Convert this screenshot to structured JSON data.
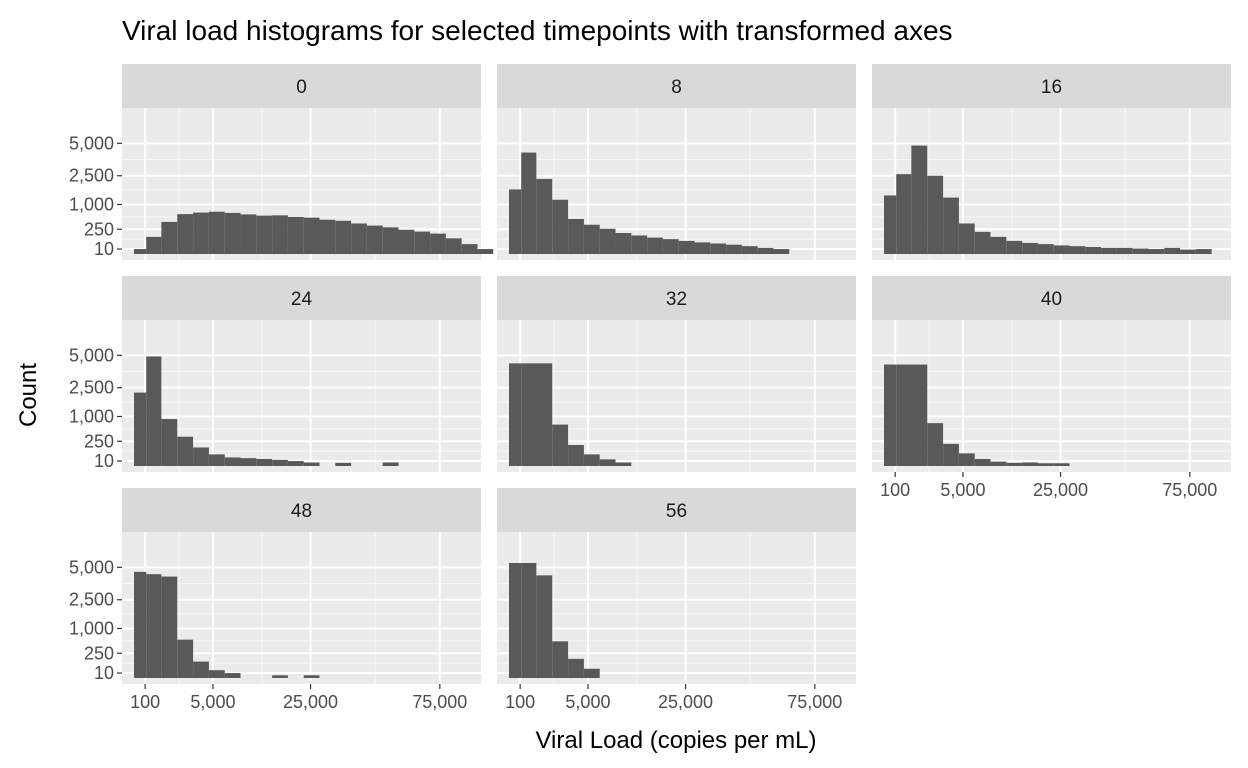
{
  "chart_data": {
    "type": "bar",
    "subtype": "faceted-histogram",
    "title": "Viral load histograms for selected timepoints with transformed axes",
    "xlabel": "Viral Load (copies per mL)",
    "ylabel": "Count",
    "x_transform": "sqrt",
    "y_transform": "sqrt",
    "xlim": [
      0,
      90000
    ],
    "ylim": [
      0,
      8000
    ],
    "x_ticks": [
      100,
      5000,
      25000,
      75000
    ],
    "x_tick_labels": [
      "100",
      "5,000",
      "25,000",
      "75,000"
    ],
    "y_ticks": [
      10,
      250,
      1000,
      2500,
      5000
    ],
    "y_tick_labels": [
      "10",
      "250",
      "1,000",
      "2,500",
      "5,000"
    ],
    "grid": true,
    "panel_background": "#ebebeb",
    "strip_background": "#d9d9d9",
    "bar_color": "#595959",
    "facets": [
      {
        "label": "0",
        "bins": [
          {
            "x0": 0,
            "x1": 120,
            "count": 10
          },
          {
            "x0": 120,
            "x1": 600,
            "count": 120
          },
          {
            "x0": 600,
            "x1": 1500,
            "count": 420
          },
          {
            "x0": 1500,
            "x1": 2800,
            "count": 650
          },
          {
            "x0": 2800,
            "x1": 4500,
            "count": 700
          },
          {
            "x0": 4500,
            "x1": 6600,
            "count": 730
          },
          {
            "x0": 6600,
            "x1": 9100,
            "count": 690
          },
          {
            "x0": 9100,
            "x1": 12000,
            "count": 640
          },
          {
            "x0": 12000,
            "x1": 15300,
            "count": 600
          },
          {
            "x0": 15300,
            "x1": 19000,
            "count": 610
          },
          {
            "x0": 19000,
            "x1": 23100,
            "count": 560
          },
          {
            "x0": 23100,
            "x1": 27600,
            "count": 540
          },
          {
            "x0": 27600,
            "x1": 32500,
            "count": 480
          },
          {
            "x0": 32500,
            "x1": 37800,
            "count": 450
          },
          {
            "x0": 37800,
            "x1": 43500,
            "count": 380
          },
          {
            "x0": 43500,
            "x1": 49600,
            "count": 330
          },
          {
            "x0": 49600,
            "x1": 56100,
            "count": 290
          },
          {
            "x0": 56100,
            "x1": 63000,
            "count": 240
          },
          {
            "x0": 63000,
            "x1": 70300,
            "count": 205
          },
          {
            "x0": 70300,
            "x1": 78000,
            "count": 170
          },
          {
            "x0": 78000,
            "x1": 86100,
            "count": 100
          },
          {
            "x0": 86100,
            "x1": 94600,
            "count": 40
          },
          {
            "x0": 94600,
            "x1": 103500,
            "count": 10
          }
        ]
      },
      {
        "label": "8",
        "bins": [
          {
            "x0": 0,
            "x1": 120,
            "count": 1700
          },
          {
            "x0": 120,
            "x1": 600,
            "count": 4200
          },
          {
            "x0": 600,
            "x1": 1500,
            "count": 2300
          },
          {
            "x0": 1500,
            "x1": 2800,
            "count": 1200
          },
          {
            "x0": 2800,
            "x1": 4500,
            "count": 500
          },
          {
            "x0": 4500,
            "x1": 6600,
            "count": 350
          },
          {
            "x0": 6600,
            "x1": 9100,
            "count": 260
          },
          {
            "x0": 9100,
            "x1": 12000,
            "count": 180
          },
          {
            "x0": 12000,
            "x1": 15300,
            "count": 140
          },
          {
            "x0": 15300,
            "x1": 19000,
            "count": 110
          },
          {
            "x0": 19000,
            "x1": 23100,
            "count": 90
          },
          {
            "x0": 23100,
            "x1": 27600,
            "count": 70
          },
          {
            "x0": 27600,
            "x1": 32500,
            "count": 55
          },
          {
            "x0": 32500,
            "x1": 37800,
            "count": 45
          },
          {
            "x0": 37800,
            "x1": 43500,
            "count": 35
          },
          {
            "x0": 43500,
            "x1": 49600,
            "count": 25
          },
          {
            "x0": 49600,
            "x1": 56100,
            "count": 15
          },
          {
            "x0": 56100,
            "x1": 63000,
            "count": 10
          }
        ]
      },
      {
        "label": "16",
        "bins": [
          {
            "x0": 0,
            "x1": 120,
            "count": 1400
          },
          {
            "x0": 120,
            "x1": 600,
            "count": 2600
          },
          {
            "x0": 600,
            "x1": 1500,
            "count": 4800
          },
          {
            "x0": 1500,
            "x1": 2800,
            "count": 2500
          },
          {
            "x0": 2800,
            "x1": 4500,
            "count": 1300
          },
          {
            "x0": 4500,
            "x1": 6600,
            "count": 380
          },
          {
            "x0": 6600,
            "x1": 9100,
            "count": 200
          },
          {
            "x0": 9100,
            "x1": 12000,
            "count": 120
          },
          {
            "x0": 12000,
            "x1": 15300,
            "count": 70
          },
          {
            "x0": 15300,
            "x1": 19000,
            "count": 50
          },
          {
            "x0": 19000,
            "x1": 23100,
            "count": 40
          },
          {
            "x0": 23100,
            "x1": 27600,
            "count": 30
          },
          {
            "x0": 27600,
            "x1": 32500,
            "count": 25
          },
          {
            "x0": 32500,
            "x1": 37800,
            "count": 20
          },
          {
            "x0": 37800,
            "x1": 43500,
            "count": 15
          },
          {
            "x0": 43500,
            "x1": 49600,
            "count": 15
          },
          {
            "x0": 49600,
            "x1": 56100,
            "count": 12
          },
          {
            "x0": 56100,
            "x1": 63000,
            "count": 10
          },
          {
            "x0": 63000,
            "x1": 70300,
            "count": 15
          },
          {
            "x0": 70300,
            "x1": 78000,
            "count": 8
          },
          {
            "x0": 78000,
            "x1": 86100,
            "count": 10
          }
        ]
      },
      {
        "label": "24",
        "bins": [
          {
            "x0": 0,
            "x1": 120,
            "count": 2200
          },
          {
            "x0": 120,
            "x1": 600,
            "count": 4900
          },
          {
            "x0": 600,
            "x1": 1500,
            "count": 900
          },
          {
            "x0": 1500,
            "x1": 2800,
            "count": 350
          },
          {
            "x0": 2800,
            "x1": 4500,
            "count": 140
          },
          {
            "x0": 4500,
            "x1": 6600,
            "count": 55
          },
          {
            "x0": 6600,
            "x1": 9100,
            "count": 30
          },
          {
            "x0": 9100,
            "x1": 12000,
            "count": 25
          },
          {
            "x0": 12000,
            "x1": 15300,
            "count": 20
          },
          {
            "x0": 15300,
            "x1": 19000,
            "count": 15
          },
          {
            "x0": 19000,
            "x1": 23100,
            "count": 10
          },
          {
            "x0": 23100,
            "x1": 27600,
            "count": 5
          },
          {
            "x0": 32500,
            "x1": 37800,
            "count": 4
          },
          {
            "x0": 49600,
            "x1": 56100,
            "count": 5
          }
        ]
      },
      {
        "label": "32",
        "bins": [
          {
            "x0": 0,
            "x1": 120,
            "count": 4300
          },
          {
            "x0": 120,
            "x1": 1500,
            "count": 4300
          },
          {
            "x0": 1500,
            "x1": 2800,
            "count": 700
          },
          {
            "x0": 2800,
            "x1": 4500,
            "count": 180
          },
          {
            "x0": 4500,
            "x1": 6600,
            "count": 55
          },
          {
            "x0": 6600,
            "x1": 9100,
            "count": 18
          },
          {
            "x0": 9100,
            "x1": 12000,
            "count": 5
          }
        ]
      },
      {
        "label": "40",
        "bins": [
          {
            "x0": 0,
            "x1": 120,
            "count": 4200
          },
          {
            "x0": 120,
            "x1": 1500,
            "count": 4200
          },
          {
            "x0": 1500,
            "x1": 2800,
            "count": 750
          },
          {
            "x0": 2800,
            "x1": 4500,
            "count": 200
          },
          {
            "x0": 4500,
            "x1": 6600,
            "count": 65
          },
          {
            "x0": 6600,
            "x1": 9100,
            "count": 20
          },
          {
            "x0": 9100,
            "x1": 12000,
            "count": 8
          },
          {
            "x0": 12000,
            "x1": 15300,
            "count": 4
          },
          {
            "x0": 15300,
            "x1": 19000,
            "count": 5
          },
          {
            "x0": 19000,
            "x1": 23100,
            "count": 3
          },
          {
            "x0": 23100,
            "x1": 27600,
            "count": 3
          }
        ]
      },
      {
        "label": "48",
        "bins": [
          {
            "x0": 0,
            "x1": 120,
            "count": 4600
          },
          {
            "x0": 120,
            "x1": 600,
            "count": 4400
          },
          {
            "x0": 600,
            "x1": 1500,
            "count": 4200
          },
          {
            "x0": 1500,
            "x1": 2800,
            "count": 600
          },
          {
            "x0": 2800,
            "x1": 4500,
            "count": 110
          },
          {
            "x0": 4500,
            "x1": 6600,
            "count": 25
          },
          {
            "x0": 6600,
            "x1": 9100,
            "count": 10
          },
          {
            "x0": 15300,
            "x1": 19000,
            "count": 3
          },
          {
            "x0": 23100,
            "x1": 27600,
            "count": 3
          }
        ]
      },
      {
        "label": "56",
        "bins": [
          {
            "x0": 0,
            "x1": 120,
            "count": 5400
          },
          {
            "x0": 120,
            "x1": 600,
            "count": 5400
          },
          {
            "x0": 600,
            "x1": 1500,
            "count": 4300
          },
          {
            "x0": 1500,
            "x1": 2800,
            "count": 550
          },
          {
            "x0": 2800,
            "x1": 4500,
            "count": 150
          },
          {
            "x0": 4500,
            "x1": 6600,
            "count": 35
          }
        ]
      }
    ]
  }
}
